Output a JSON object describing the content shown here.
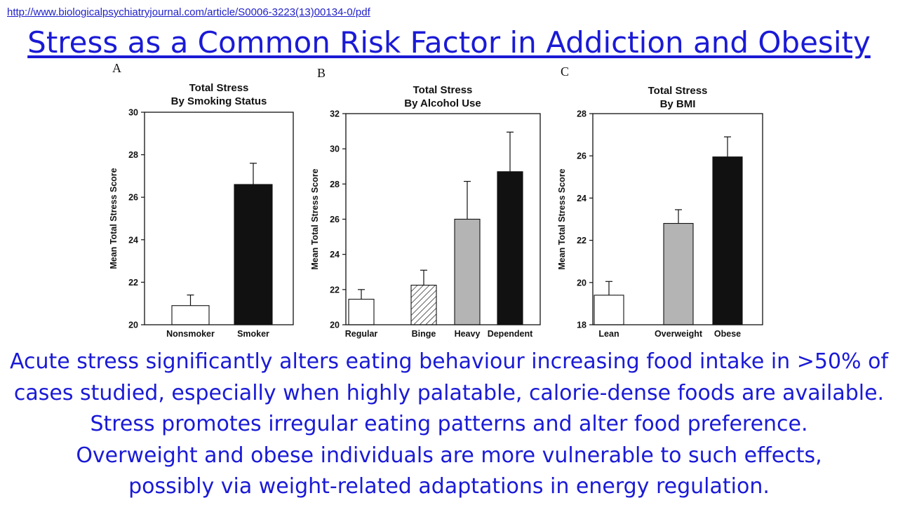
{
  "source_link": "http://www.biologicalpsychiatryjournal.com/article/S0006-3223(13)00134-0/pdf",
  "title": "Stress as a Common Risk Factor in Addiction and Obesity",
  "chart_data": [
    {
      "panel": "A",
      "type": "bar",
      "title_lines": [
        "Total Stress",
        "By Smoking Status"
      ],
      "ylabel": "Mean Total Stress Score",
      "ylim": [
        20,
        30
      ],
      "yticks": [
        20,
        22,
        24,
        26,
        28,
        30
      ],
      "categories": [
        "Nonsmoker",
        "Smoker"
      ],
      "values": [
        20.9,
        26.6
      ],
      "errors": [
        0.5,
        1.0
      ],
      "fills": [
        "white",
        "black"
      ]
    },
    {
      "panel": "B",
      "type": "bar",
      "title_lines": [
        "Total Stress",
        "By Alcohol Use"
      ],
      "ylabel": "Mean Total Stress Score",
      "ylim": [
        20,
        32
      ],
      "yticks": [
        20,
        22,
        24,
        26,
        28,
        30,
        32
      ],
      "categories": [
        "Regular",
        "Binge",
        "Heavy",
        "Dependent"
      ],
      "values": [
        21.45,
        22.25,
        26.0,
        28.7
      ],
      "errors": [
        0.55,
        0.85,
        2.15,
        2.25
      ],
      "fills": [
        "white",
        "hatch",
        "gray",
        "black"
      ]
    },
    {
      "panel": "C",
      "type": "bar",
      "title_lines": [
        "Total Stress",
        "By BMI"
      ],
      "ylabel": "Mean Total Stress Score",
      "ylim": [
        18,
        28
      ],
      "yticks": [
        18,
        20,
        22,
        24,
        26,
        28
      ],
      "categories": [
        "Lean",
        "Overweight",
        "Obese"
      ],
      "values": [
        19.4,
        22.8,
        25.95
      ],
      "errors": [
        0.65,
        0.65,
        0.95
      ],
      "fills": [
        "white",
        "gray",
        "black"
      ]
    }
  ],
  "body_lines": [
    "Acute stress significantly alters eating behaviour increasing food intake in >50% of",
    "cases studied, especially when highly palatable, calorie-dense foods are available.",
    "Stress promotes irregular eating patterns and alter food preference.",
    "Overweight and obese individuals are more vulnerable to such effects,",
    "possibly via weight-related adaptations in energy regulation."
  ],
  "colors": {
    "link": "#1f1fc9",
    "title": "#1a1ad6",
    "text": "#1a1ad6",
    "bar_gray": "#b4b4b4",
    "bar_black": "#111111"
  }
}
